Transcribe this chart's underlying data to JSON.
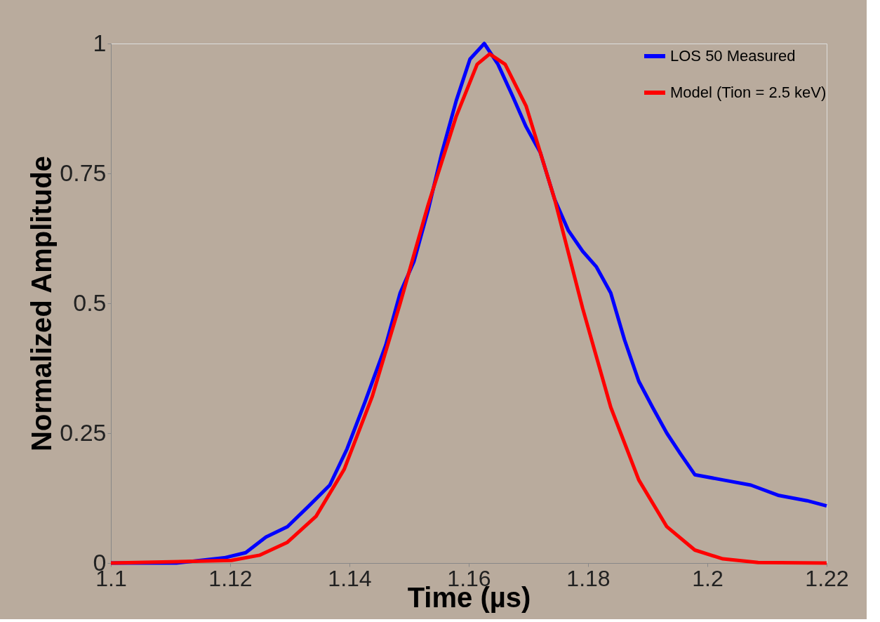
{
  "chart_data": {
    "type": "line",
    "xlabel": "Time (µs)",
    "ylabel": "Normalized Amplitude",
    "xlim": [
      1.1,
      1.22
    ],
    "xticks": [
      1.1,
      1.12,
      1.14,
      1.16,
      1.18,
      1.2,
      1.22
    ],
    "ylim": [
      0,
      1
    ],
    "yticks": [
      0,
      0.25,
      0.5,
      0.75,
      1
    ],
    "grid": false,
    "legend": "top right",
    "line_style": "solid",
    "series": [
      {
        "name": "LOS 50 Measured",
        "color": "#0000ff",
        "x": [
          1.1,
          1.111,
          1.119,
          1.1226,
          1.126,
          1.1296,
          1.1332,
          1.1367,
          1.1396,
          1.1426,
          1.1461,
          1.1485,
          1.1508,
          1.1532,
          1.1555,
          1.1579,
          1.1602,
          1.1626,
          1.1649,
          1.1673,
          1.1696,
          1.172,
          1.1744,
          1.1767,
          1.1791,
          1.1814,
          1.1838,
          1.1861,
          1.1885,
          1.1908,
          1.1932,
          1.1955,
          1.1979,
          1.2026,
          1.2073,
          1.212,
          1.2167,
          1.22
        ],
        "values": [
          0,
          0,
          0.01,
          0.02,
          0.05,
          0.07,
          0.11,
          0.15,
          0.22,
          0.31,
          0.42,
          0.52,
          0.58,
          0.68,
          0.79,
          0.89,
          0.97,
          1.0,
          0.96,
          0.9,
          0.84,
          0.79,
          0.7,
          0.64,
          0.6,
          0.57,
          0.52,
          0.43,
          0.35,
          0.3,
          0.25,
          0.21,
          0.17,
          0.16,
          0.15,
          0.13,
          0.12,
          0.11
        ]
      },
      {
        "name": "Model (Tion = 2.5 keV)",
        "color": "#ff0000",
        "x": [
          1.1,
          1.1202,
          1.1249,
          1.1296,
          1.1344,
          1.1391,
          1.1438,
          1.1485,
          1.1532,
          1.1579,
          1.1614,
          1.1635,
          1.1661,
          1.1696,
          1.1744,
          1.1791,
          1.1838,
          1.1885,
          1.1932,
          1.1979,
          1.2026,
          1.2085,
          1.22
        ],
        "values": [
          0,
          0.005,
          0.015,
          0.04,
          0.09,
          0.18,
          0.32,
          0.5,
          0.69,
          0.86,
          0.96,
          0.98,
          0.96,
          0.88,
          0.7,
          0.49,
          0.3,
          0.16,
          0.07,
          0.025,
          0.008,
          0.001,
          0
        ]
      }
    ]
  }
}
